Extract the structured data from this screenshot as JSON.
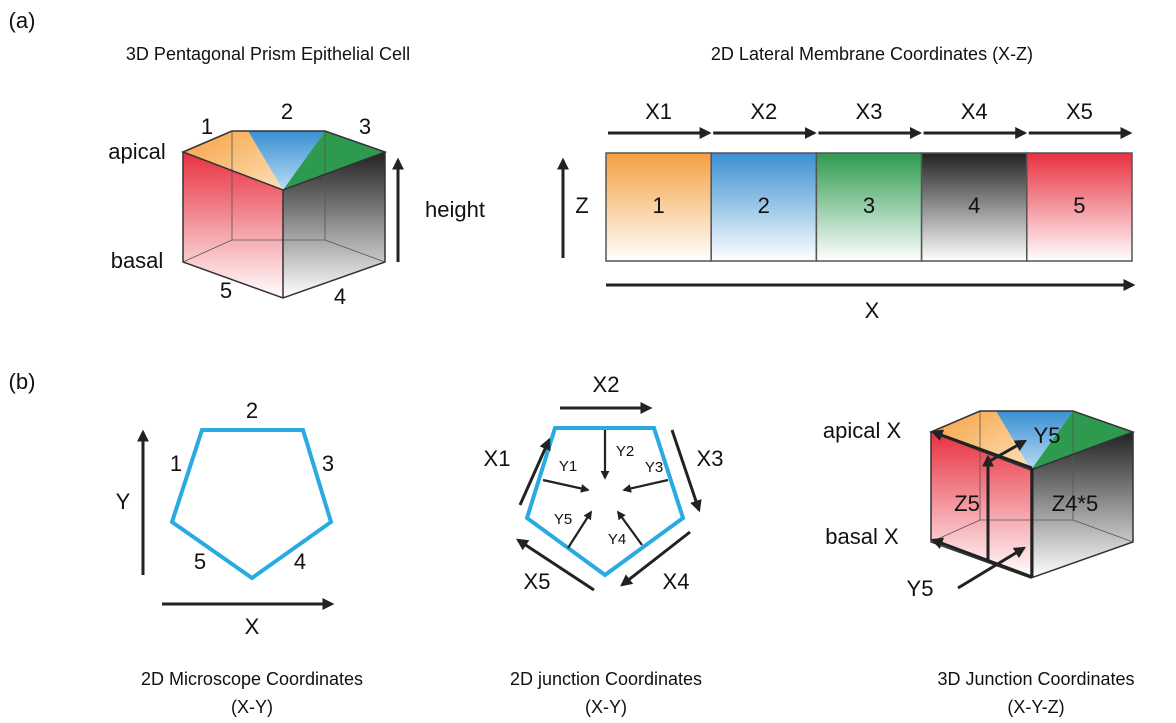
{
  "panel_a": {
    "label": "(a)",
    "prism": {
      "title": "3D Pentagonal Prism Epithelial Cell",
      "face_labels": [
        "1",
        "2",
        "3",
        "5",
        "4"
      ],
      "apical": "apical",
      "basal": "basal",
      "height": "height"
    },
    "membrane": {
      "title": "2D Lateral Membrane Coordinates (X-Z)",
      "x_labels": [
        "X1",
        "X2",
        "X3",
        "X4",
        "X5"
      ],
      "segments": [
        "1",
        "2",
        "3",
        "4",
        "5"
      ],
      "z_axis": "Z",
      "x_axis": "X"
    }
  },
  "panel_b": {
    "label": "(b)",
    "microscope": {
      "edge_labels": [
        "2",
        "1",
        "3",
        "5",
        "4"
      ],
      "y_axis": "Y",
      "x_axis": "X",
      "caption": [
        "2D Microscope Coordinates",
        "(X-Y)"
      ]
    },
    "junction": {
      "x_labels": [
        "X1",
        "X2",
        "X3",
        "X4",
        "X5"
      ],
      "y_labels": [
        "Y1",
        "Y2",
        "Y3",
        "Y4",
        "Y5"
      ],
      "caption": [
        "2D junction Coordinates",
        "(X-Y)"
      ]
    },
    "junction_3d": {
      "apical": "apical X",
      "basal": "basal X",
      "y_top": "Y5",
      "z_left": "Z5",
      "z_right": "Z4*5",
      "y_bottom": "Y5",
      "caption": [
        "3D Junction Coordinates",
        "(X-Y-Z)"
      ]
    }
  }
}
